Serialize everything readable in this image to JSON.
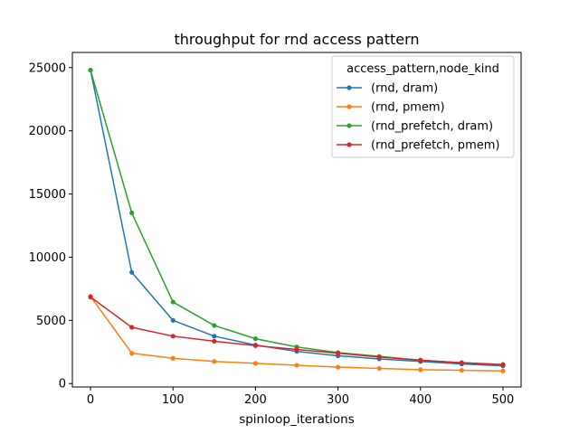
{
  "chart_data": {
    "type": "line",
    "title": "throughput for rnd access pattern",
    "xlabel": "spinloop_iterations",
    "ylabel": "",
    "xlim": [
      -22,
      522
    ],
    "ylim": [
      -270,
      26200
    ],
    "xticks": [
      0,
      100,
      200,
      300,
      400,
      500
    ],
    "yticks": [
      0,
      5000,
      10000,
      15000,
      20000,
      25000
    ],
    "grid": false,
    "legend": {
      "title": "access_pattern,node_kind",
      "placement": "top-right"
    },
    "x": [
      0,
      50,
      100,
      150,
      200,
      250,
      300,
      350,
      400,
      450,
      500
    ],
    "series": [
      {
        "name": "(rnd, dram)",
        "color": "#1f77b4",
        "values": [
          24800,
          8800,
          5000,
          3750,
          3050,
          2550,
          2200,
          1950,
          1750,
          1550,
          1400
        ]
      },
      {
        "name": "(rnd, pmem)",
        "color": "#ff7f0e",
        "values": [
          6900,
          2400,
          2000,
          1750,
          1600,
          1450,
          1300,
          1200,
          1100,
          1050,
          1000
        ]
      },
      {
        "name": "(rnd_prefetch, dram)",
        "color": "#2ca02c",
        "values": [
          24800,
          13500,
          6450,
          4600,
          3550,
          2900,
          2450,
          2150,
          1850,
          1650,
          1500
        ]
      },
      {
        "name": "(rnd_prefetch, pmem)",
        "color": "#d62728",
        "values": [
          6850,
          4450,
          3750,
          3350,
          3000,
          2700,
          2400,
          2100,
          1850,
          1650,
          1500
        ]
      }
    ]
  }
}
